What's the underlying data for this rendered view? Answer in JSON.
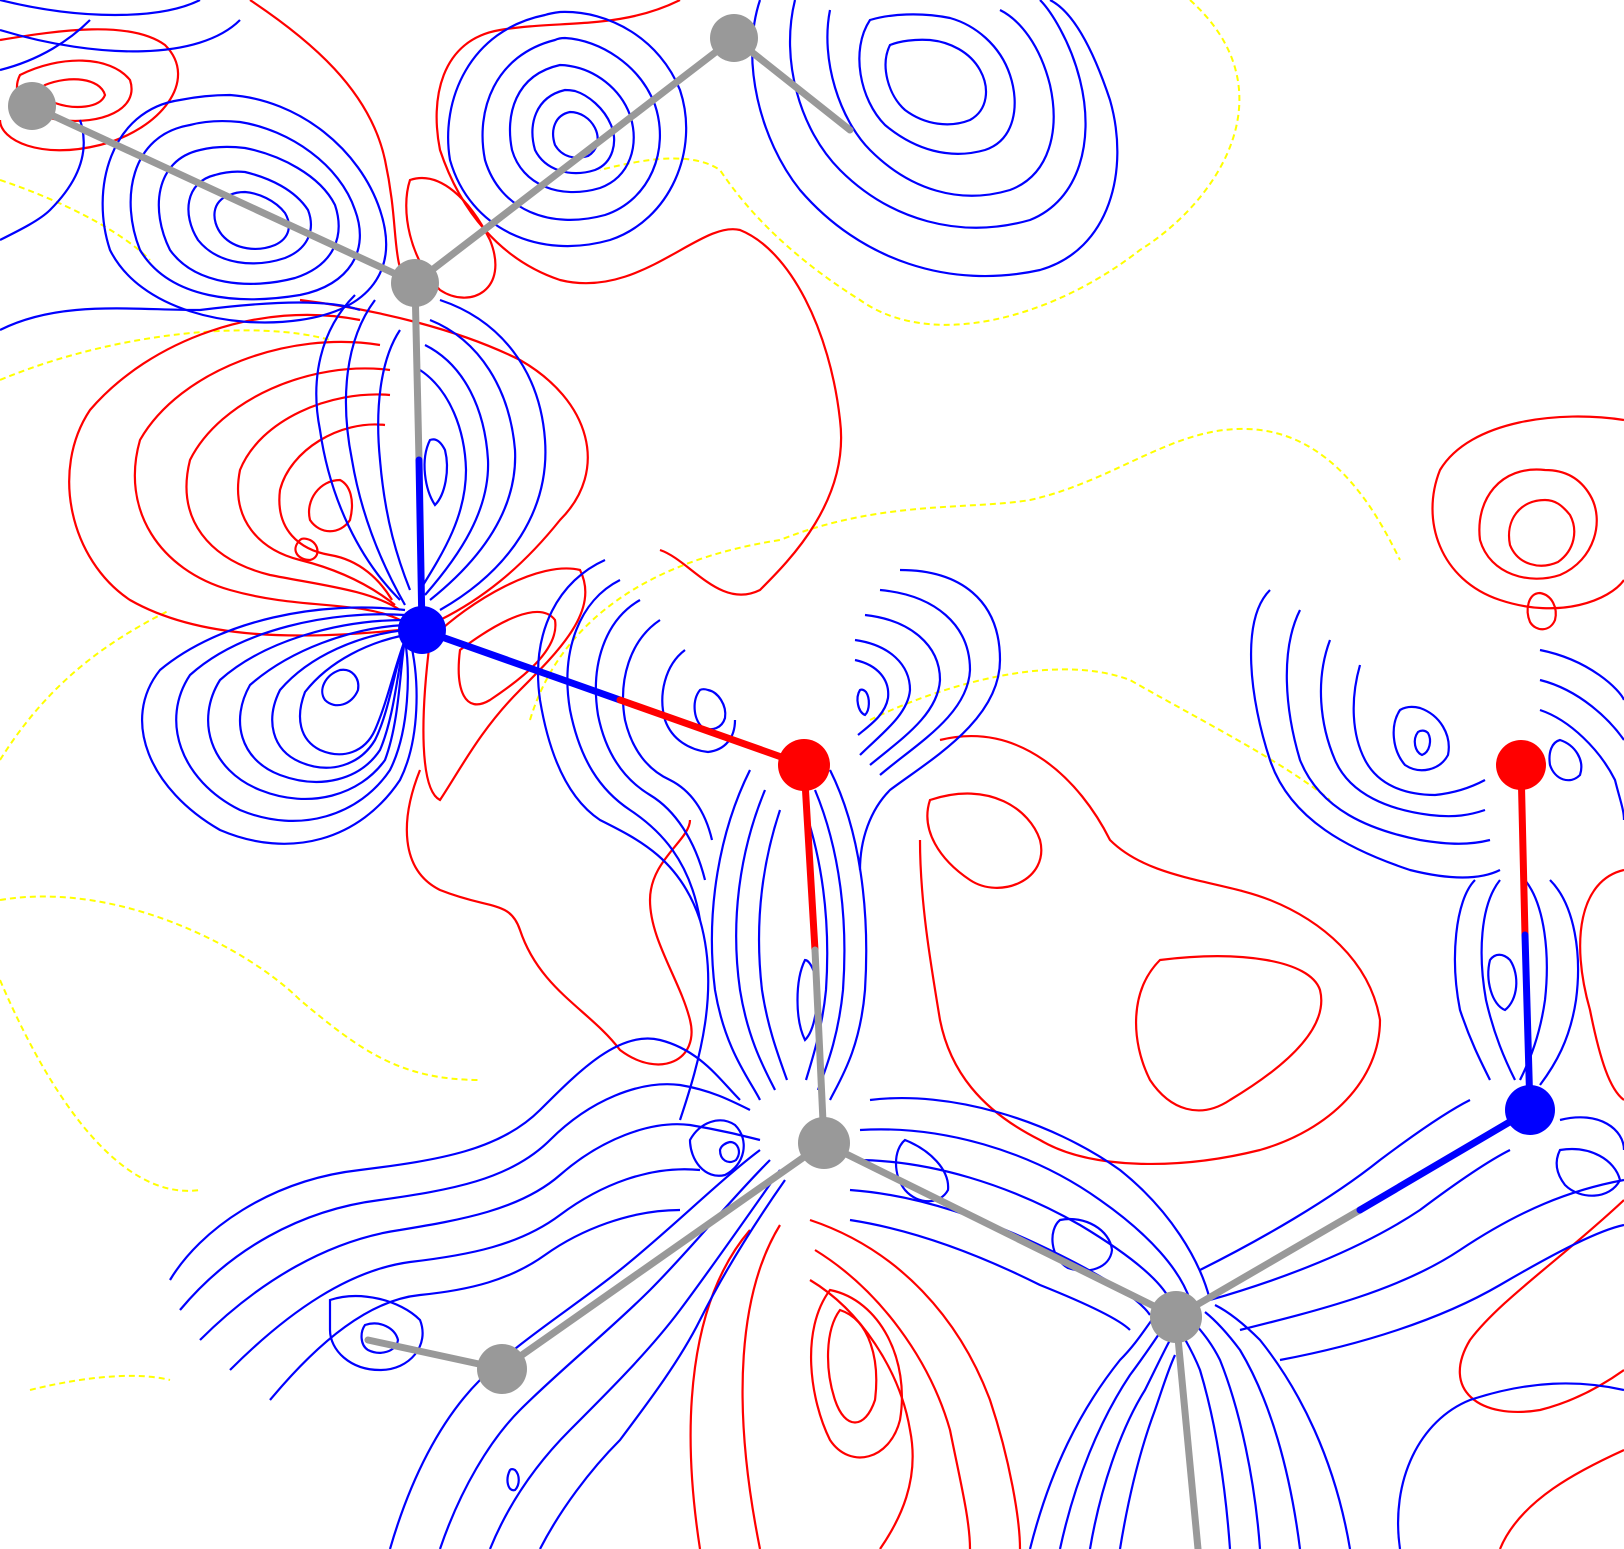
{
  "figure": {
    "kind": "deformation-density-contour-map",
    "colors": {
      "positive_contour": "#0000ff",
      "negative_contour": "#ff0000",
      "zero_contour": "#ffff00",
      "carbon": "#999999",
      "nitrogen": "#0000ff",
      "oxygen": "#ff0000",
      "background": "#ffffff"
    },
    "atoms": [
      {
        "id": "c1",
        "element": "C"
      },
      {
        "id": "c2",
        "element": "C"
      },
      {
        "id": "c3",
        "element": "C"
      },
      {
        "id": "n1",
        "element": "N"
      },
      {
        "id": "o1",
        "element": "O"
      },
      {
        "id": "c4",
        "element": "C"
      },
      {
        "id": "c5",
        "element": "C"
      },
      {
        "id": "c6",
        "element": "C"
      },
      {
        "id": "o2",
        "element": "O"
      },
      {
        "id": "n2",
        "element": "N"
      }
    ],
    "bonds": [
      {
        "from": "c1",
        "to": "c3"
      },
      {
        "from": "c2",
        "to": "c3"
      },
      {
        "from": "c3",
        "to": "n1"
      },
      {
        "from": "n1",
        "to": "o1"
      },
      {
        "from": "o1",
        "to": "c4"
      },
      {
        "from": "c4",
        "to": "c5"
      },
      {
        "from": "c4",
        "to": "c6"
      },
      {
        "from": "c6",
        "to": "n2"
      },
      {
        "from": "o2",
        "to": "n2"
      }
    ]
  }
}
